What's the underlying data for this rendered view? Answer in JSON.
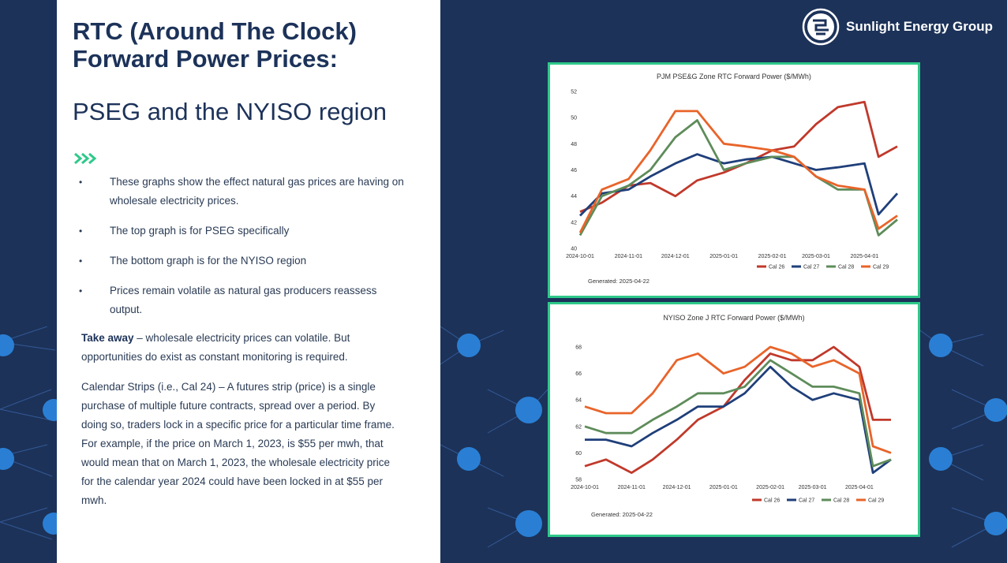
{
  "slide": {
    "title": "RTC (Around The Clock) Forward Power Prices:",
    "subtitle": "PSEG and the NYISO region",
    "bullets": [
      "These graphs show the effect natural gas prices are having on wholesale electricity prices.",
      "The top graph is for PSEG specifically",
      "The bottom graph is for the NYISO region",
      "Prices remain volatile as natural gas producers reassess output."
    ],
    "takeaway_label": "Take away",
    "takeaway_text": " – wholesale electricity prices can volatile. But opportunities do exist as constant monitoring is required.",
    "calendar_text": "Calendar Strips (i.e., Cal 24) – A futures strip (price) is a single purchase of multiple future contracts, spread over a period. By doing so, traders lock in a specific price for a particular time frame.  For example, if the price on March 1, 2023, is $55 per mwh, that would mean that on March 1, 2023, the wholesale electricity price for the calendar year 2024 could have been locked in at $55 per mwh."
  },
  "brand": {
    "name": "Sunlight Energy Group",
    "icon": "sunlight-logo-icon",
    "accent": "#2ec98a",
    "navy": "#1c3259"
  },
  "chart_data": [
    {
      "type": "line",
      "title": "PJM PSE&G Zone RTC Forward Power ($/MWh)",
      "generated": "Generated: 2025-04-22",
      "ylim": [
        40,
        52
      ],
      "yticks": [
        40,
        42,
        44,
        46,
        48,
        50,
        52
      ],
      "xticks": [
        "2024-10-01",
        "2024-11-01",
        "2024-12-01",
        "2025-01-01",
        "2025-02-01",
        "2025-03-01",
        "2025-04-01"
      ],
      "x": [
        "2024-10-01",
        "2024-10-15",
        "2024-11-01",
        "2024-11-15",
        "2024-12-01",
        "2024-12-15",
        "2025-01-01",
        "2025-01-15",
        "2025-02-01",
        "2025-02-15",
        "2025-03-01",
        "2025-03-15",
        "2025-04-01",
        "2025-04-10",
        "2025-04-22"
      ],
      "series": [
        {
          "name": "Cal 26",
          "color": "#c0392b",
          "values": [
            42.8,
            43.5,
            44.8,
            45.0,
            44.0,
            45.2,
            45.8,
            46.5,
            47.5,
            47.8,
            49.5,
            50.8,
            51.2,
            47.0,
            47.8
          ]
        },
        {
          "name": "Cal 27",
          "color": "#1f3f7a",
          "values": [
            42.5,
            44.2,
            44.5,
            45.5,
            46.5,
            47.2,
            46.5,
            46.8,
            47.0,
            46.5,
            46.0,
            46.2,
            46.5,
            42.6,
            44.2
          ]
        },
        {
          "name": "Cal 28",
          "color": "#5e8c5a",
          "values": [
            41.0,
            44.0,
            44.8,
            46.0,
            48.5,
            49.8,
            46.0,
            46.5,
            47.0,
            47.0,
            45.5,
            44.5,
            44.5,
            41.0,
            42.2
          ]
        },
        {
          "name": "Cal 29",
          "color": "#e8642a",
          "values": [
            41.2,
            44.5,
            45.3,
            47.5,
            50.5,
            50.5,
            48.0,
            47.8,
            47.5,
            47.0,
            45.5,
            44.8,
            44.5,
            41.5,
            42.5
          ]
        }
      ]
    },
    {
      "type": "line",
      "title": "NYISO Zone J RTC Forward Power ($/MWh)",
      "generated": "Generated: 2025-04-22",
      "ylim": [
        58,
        68
      ],
      "yticks": [
        58,
        60,
        62,
        64,
        66,
        68
      ],
      "xticks": [
        "2024-10-01",
        "2024-11-01",
        "2024-12-01",
        "2025-01-01",
        "2025-02-01",
        "2025-03-01",
        "2025-04-01"
      ],
      "x": [
        "2024-10-01",
        "2024-10-15",
        "2024-11-01",
        "2024-11-15",
        "2024-12-01",
        "2024-12-15",
        "2025-01-01",
        "2025-01-15",
        "2025-02-01",
        "2025-02-15",
        "2025-03-01",
        "2025-03-15",
        "2025-04-01",
        "2025-04-10",
        "2025-04-22"
      ],
      "series": [
        {
          "name": "Cal 26",
          "color": "#c0392b",
          "values": [
            59.0,
            59.5,
            58.5,
            59.5,
            61.0,
            62.5,
            63.5,
            65.5,
            67.5,
            67.0,
            67.0,
            68.0,
            66.5,
            62.5,
            62.5
          ]
        },
        {
          "name": "Cal 27",
          "color": "#1f3f7a",
          "values": [
            61.0,
            61.0,
            60.5,
            61.5,
            62.5,
            63.5,
            63.5,
            64.5,
            66.5,
            65.0,
            64.0,
            64.5,
            64.0,
            58.5,
            59.5
          ]
        },
        {
          "name": "Cal 28",
          "color": "#5e8c5a",
          "values": [
            62.0,
            61.5,
            61.5,
            62.5,
            63.5,
            64.5,
            64.5,
            65.0,
            67.0,
            66.0,
            65.0,
            65.0,
            64.5,
            59.0,
            59.5
          ]
        },
        {
          "name": "Cal 29",
          "color": "#e8642a",
          "values": [
            63.5,
            63.0,
            63.0,
            64.5,
            67.0,
            67.5,
            66.0,
            66.5,
            68.0,
            67.5,
            66.5,
            67.0,
            66.0,
            60.5,
            60.0
          ]
        }
      ]
    }
  ]
}
